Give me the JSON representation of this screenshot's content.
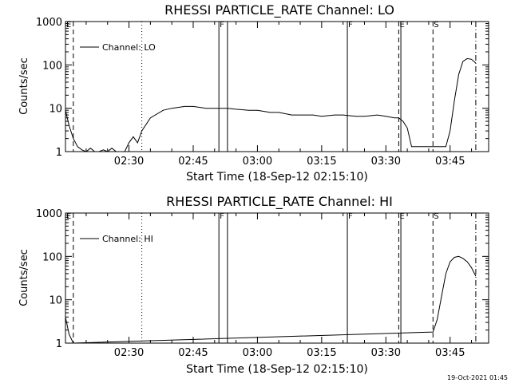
{
  "timestamp": "19-Oct-2021 01:45",
  "charts": [
    {
      "title": "RHESSI PARTICLE_RATE Channel: LO",
      "xlabel": "Start Time (18-Sep-12 02:15:10)",
      "ylabel": "Counts/sec",
      "legend": "Channel: LO"
    },
    {
      "title": "RHESSI PARTICLE_RATE Channel: HI",
      "xlabel": "Start Time (18-Sep-12 02:15:10)",
      "ylabel": "Counts/sec",
      "legend": "Channel: HI"
    }
  ],
  "chart_data": [
    {
      "type": "line",
      "title": "RHESSI PARTICLE_RATE Channel: LO",
      "xlabel": "Start Time (18-Sep-12 02:15:10)",
      "ylabel": "Counts/sec",
      "y_scale": "log",
      "xlim": [
        "02:15:10",
        "03:54"
      ],
      "ylim": [
        1,
        1000
      ],
      "x_ticks": [
        "02:30",
        "02:45",
        "03:00",
        "03:15",
        "03:30",
        "03:45"
      ],
      "y_ticks": [
        "1",
        "10",
        "100",
        "1000"
      ],
      "legend_position": "top-left",
      "series": [
        {
          "name": "Channel: LO",
          "x": [
            "02:15:10",
            "02:16",
            "02:17",
            "02:18",
            "02:19",
            "02:20",
            "02:21",
            "02:22",
            "02:23",
            "02:24",
            "02:25",
            "02:26",
            "02:27",
            "02:28",
            "02:29",
            "02:30",
            "02:31",
            "02:32",
            "02:33",
            "02:35",
            "02:38",
            "02:40",
            "02:43",
            "02:45",
            "02:48",
            "02:50",
            "02:53",
            "02:55",
            "02:58",
            "03:00",
            "03:03",
            "03:05",
            "03:08",
            "03:10",
            "03:13",
            "03:15",
            "03:18",
            "03:20",
            "03:23",
            "03:25",
            "03:28",
            "03:30",
            "03:32",
            "03:33",
            "03:34",
            "03:35",
            "03:36",
            "03:37",
            "03:38",
            "03:39",
            "03:40",
            "03:41",
            "03:42",
            "03:43",
            "03:44",
            "03:45",
            "03:46",
            "03:47",
            "03:48",
            "03:49",
            "03:50",
            "03:51"
          ],
          "y": [
            9,
            4,
            2,
            1.3,
            1.1,
            1,
            1.2,
            1,
            1,
            1.1,
            1,
            1.2,
            1,
            1,
            1,
            1.6,
            2.2,
            1.6,
            3,
            6,
            9,
            10,
            11,
            11,
            10,
            10,
            10,
            9.5,
            9,
            9,
            8,
            8,
            7,
            7,
            7,
            6.5,
            7,
            7,
            6.5,
            6.5,
            7,
            6.5,
            6,
            6,
            5,
            3.5,
            1.3,
            1.3,
            1.3,
            1.3,
            1.3,
            1.3,
            1.3,
            1.3,
            1.3,
            3,
            15,
            60,
            120,
            140,
            135,
            110
          ]
        }
      ],
      "markers": [
        {
          "label": "E",
          "time": "02:15:10",
          "style": "solid"
        },
        {
          "label": "",
          "time": "02:17",
          "style": "dashed"
        },
        {
          "label": "",
          "time": "02:33",
          "style": "dotted"
        },
        {
          "label": "F",
          "time": "02:51",
          "style": "solid"
        },
        {
          "label": "",
          "time": "02:53",
          "style": "solid"
        },
        {
          "label": "F",
          "time": "03:21",
          "style": "solid"
        },
        {
          "label": "E",
          "time": "03:33",
          "style": "dashed"
        },
        {
          "label": "",
          "time": "03:33:30",
          "style": "solid"
        },
        {
          "label": "S",
          "time": "03:41",
          "style": "dashed"
        },
        {
          "label": "",
          "time": "03:51",
          "style": "dashdot"
        }
      ]
    },
    {
      "type": "line",
      "title": "RHESSI PARTICLE_RATE Channel: HI",
      "xlabel": "Start Time (18-Sep-12 02:15:10)",
      "ylabel": "Counts/sec",
      "y_scale": "log",
      "xlim": [
        "02:15:10",
        "03:54"
      ],
      "ylim": [
        1,
        1000
      ],
      "x_ticks": [
        "02:30",
        "02:45",
        "03:00",
        "03:15",
        "03:30",
        "03:45"
      ],
      "y_ticks": [
        "1",
        "10",
        "100",
        "1000"
      ],
      "legend_position": "top-left",
      "series": [
        {
          "name": "Channel: HI",
          "x": [
            "02:15:10",
            "02:16",
            "02:17",
            "03:41",
            "03:42",
            "03:43",
            "03:44",
            "03:45",
            "03:46",
            "03:47",
            "03:48",
            "03:49",
            "03:50",
            "03:51"
          ],
          "y": [
            4,
            1.6,
            1,
            1.8,
            3.5,
            12,
            40,
            75,
            95,
            100,
            90,
            75,
            55,
            35
          ]
        }
      ],
      "markers": [
        {
          "label": "E",
          "time": "02:15:10",
          "style": "solid"
        },
        {
          "label": "",
          "time": "02:17",
          "style": "dashed"
        },
        {
          "label": "",
          "time": "02:33",
          "style": "dotted"
        },
        {
          "label": "F",
          "time": "02:51",
          "style": "solid"
        },
        {
          "label": "",
          "time": "02:53",
          "style": "solid"
        },
        {
          "label": "F",
          "time": "03:21",
          "style": "solid"
        },
        {
          "label": "E",
          "time": "03:33",
          "style": "dashed"
        },
        {
          "label": "",
          "time": "03:33:30",
          "style": "solid"
        },
        {
          "label": "S",
          "time": "03:41",
          "style": "dashed"
        },
        {
          "label": "",
          "time": "03:51",
          "style": "dashdot"
        }
      ]
    }
  ]
}
